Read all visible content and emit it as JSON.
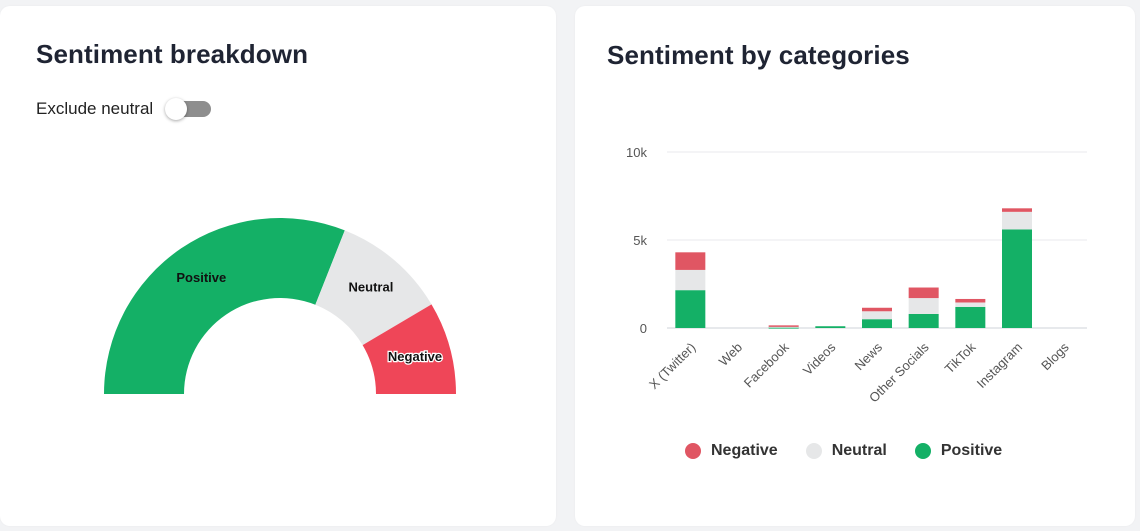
{
  "breakdown": {
    "title": "Sentiment breakdown",
    "toggle_label": "Exclude neutral",
    "toggle_on": false
  },
  "categories_panel": {
    "title": "Sentiment by categories"
  },
  "colors": {
    "negative": "#e05663",
    "neutral": "#e6e7e8",
    "positive": "#14b066",
    "neg_gauge": "#ef4658"
  },
  "chart_data": [
    {
      "type": "pie",
      "variant": "semi-donut",
      "labels": [
        "Positive",
        "Neutral",
        "Negative"
      ],
      "values": [
        62,
        21,
        17
      ]
    },
    {
      "type": "bar",
      "stacked": true,
      "title": "Sentiment by categories",
      "categories": [
        "X (Twitter)",
        "Web",
        "Facebook",
        "Videos",
        "News",
        "Other Socials",
        "TikTok",
        "Instagram",
        "Blogs"
      ],
      "series": [
        {
          "name": "Positive",
          "values": [
            2150,
            0,
            50,
            100,
            500,
            800,
            1200,
            5600,
            0
          ]
        },
        {
          "name": "Neutral",
          "values": [
            1150,
            0,
            50,
            0,
            450,
            900,
            250,
            1000,
            0
          ]
        },
        {
          "name": "Negative",
          "values": [
            1000,
            0,
            50,
            0,
            200,
            600,
            200,
            200,
            0
          ]
        }
      ],
      "yticks": [
        "0",
        "5k",
        "10k"
      ],
      "ytick_values": [
        0,
        5000,
        10000
      ],
      "ylim": [
        0,
        10000
      ],
      "grid": true,
      "legend": [
        "Negative",
        "Neutral",
        "Positive"
      ],
      "legend_placement": "bottom-center"
    }
  ]
}
